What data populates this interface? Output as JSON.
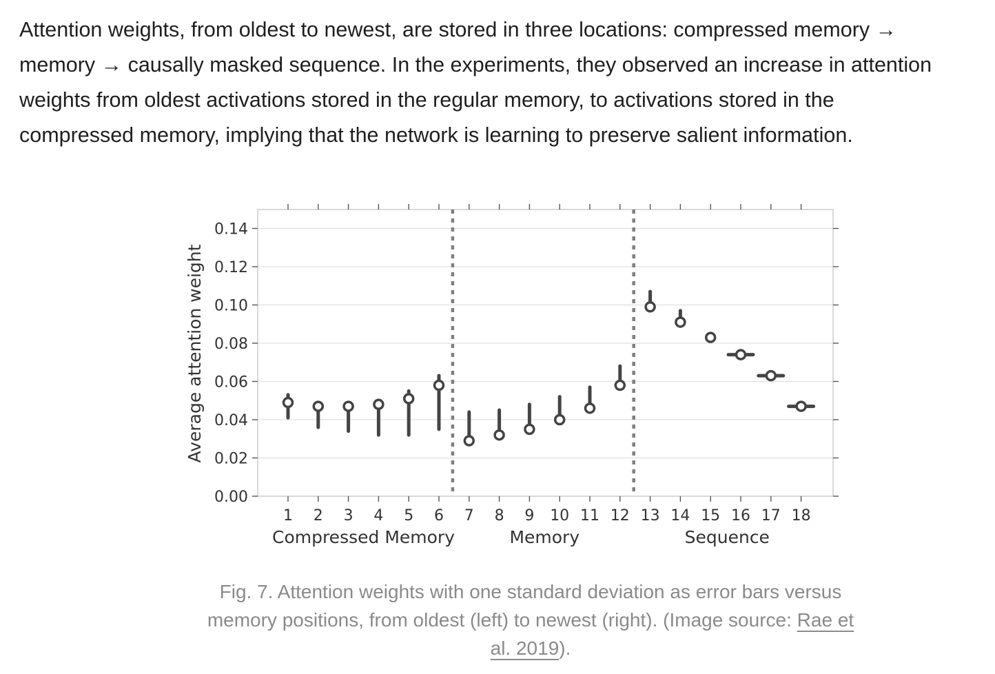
{
  "paragraph": {
    "lines": [
      "Attention weights, from oldest to newest, are stored in three locations: compressed memory →",
      "memory → causally masked sequence. In the experiments, they observed an increase in attention",
      "weights from oldest activations stored in the regular memory, to activations stored in the",
      "compressed memory, implying that the network is learning to preserve salient information."
    ]
  },
  "chart_data": {
    "type": "scatter",
    "title": "",
    "ylabel": "Average attention weight",
    "xlabel": "",
    "ylim": [
      0,
      0.15
    ],
    "yticks": [
      "0.00",
      "0.02",
      "0.04",
      "0.06",
      "0.08",
      "0.10",
      "0.12",
      "0.14"
    ],
    "x": [
      1,
      2,
      3,
      4,
      5,
      6,
      7,
      8,
      9,
      10,
      11,
      12,
      13,
      14,
      15,
      16,
      17,
      18
    ],
    "xticks": [
      "1",
      "2",
      "3",
      "4",
      "5",
      "6",
      "7",
      "8",
      "9",
      "10",
      "11",
      "12",
      "13",
      "14",
      "15",
      "16",
      "17",
      "18"
    ],
    "mean": [
      0.049,
      0.047,
      0.047,
      0.048,
      0.051,
      0.058,
      0.029,
      0.032,
      0.035,
      0.04,
      0.046,
      0.058,
      0.099,
      0.091,
      0.083,
      0.074,
      0.063,
      0.047
    ],
    "err_low": [
      0.041,
      0.036,
      0.034,
      0.032,
      0.032,
      0.035,
      0.029,
      0.032,
      0.035,
      0.04,
      0.046,
      0.058,
      0.099,
      0.091,
      0.083,
      0.074,
      0.063,
      0.047
    ],
    "err_high": [
      0.053,
      0.048,
      0.048,
      0.05,
      0.055,
      0.063,
      0.044,
      0.045,
      0.048,
      0.052,
      0.057,
      0.068,
      0.107,
      0.097,
      0.085,
      0.074,
      0.063,
      0.047
    ],
    "err_horizontal": [
      false,
      false,
      false,
      false,
      false,
      false,
      false,
      false,
      false,
      false,
      false,
      false,
      false,
      false,
      false,
      true,
      true,
      true
    ],
    "dividers_after_x": [
      6.5,
      12.5
    ],
    "groups": [
      {
        "label": "Compressed Memory",
        "center_x": 3.5
      },
      {
        "label": "Memory",
        "center_x": 9.5
      },
      {
        "label": "Sequence",
        "center_x": 15.55
      }
    ],
    "grid": "horizontal",
    "colors": {
      "marker": "#444444",
      "divider": "#808080",
      "grid": "#e0e0e0",
      "frame": "#cccccc"
    }
  },
  "caption": {
    "line1": "Fig. 7. Attention weights with one standard deviation as error bars versus",
    "line2_text": "memory positions, from oldest (left) to newest (right). (Image source: ",
    "link_part1": "Rae et",
    "link_part2": "al. 2019",
    "tail": ")."
  }
}
